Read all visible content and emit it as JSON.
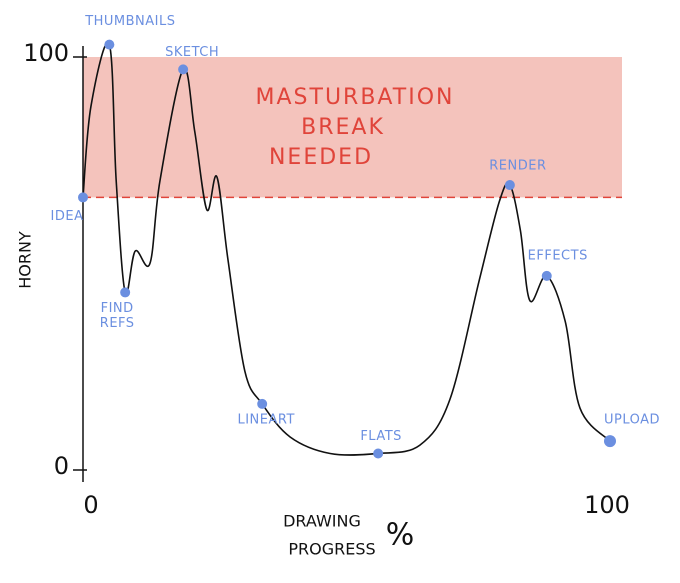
{
  "chart_data": {
    "type": "line",
    "y_label": "HORNY",
    "x_label": [
      "DRAWING",
      "PROGRESS"
    ],
    "x_unit": "%",
    "xlim": [
      0,
      100
    ],
    "xticks": [
      0,
      100
    ],
    "ylim": [
      0,
      100
    ],
    "yticks": [
      0,
      100
    ],
    "color": "#111111",
    "point_color": "#6b8fe0",
    "band": {
      "from": 66,
      "to": 100,
      "color": "#f4c3bc",
      "edge_color": "#e0443a",
      "label": [
        "MASTURBATION",
        "BREAK",
        "NEEDED"
      ]
    },
    "x": [
      0,
      1.5,
      5,
      6.3,
      8,
      9.9,
      12.7,
      14.6,
      19,
      21.2,
      23.5,
      25.4,
      27.5,
      30.7,
      34,
      39.3,
      46.9,
      56,
      63.9,
      69.6,
      75.2,
      79,
      81,
      83,
      84.8,
      88,
      91.5,
      94.3,
      100
    ],
    "values": [
      66,
      88,
      103,
      70,
      43,
      53,
      50,
      70,
      97,
      82,
      63,
      71,
      51,
      24,
      16,
      8,
      4,
      4,
      6,
      17,
      46,
      65,
      69,
      58,
      41,
      47,
      36,
      15,
      7
    ],
    "labels": [
      "IDEA",
      null,
      "THUMBNAILS",
      null,
      [
        "FIND",
        "REFS"
      ],
      null,
      null,
      null,
      "SKETCH",
      null,
      null,
      null,
      null,
      null,
      "LINEART",
      null,
      null,
      "FLATS",
      null,
      null,
      null,
      null,
      "RENDER",
      null,
      null,
      "EFFECTS",
      null,
      null,
      "UPLOAD"
    ]
  }
}
